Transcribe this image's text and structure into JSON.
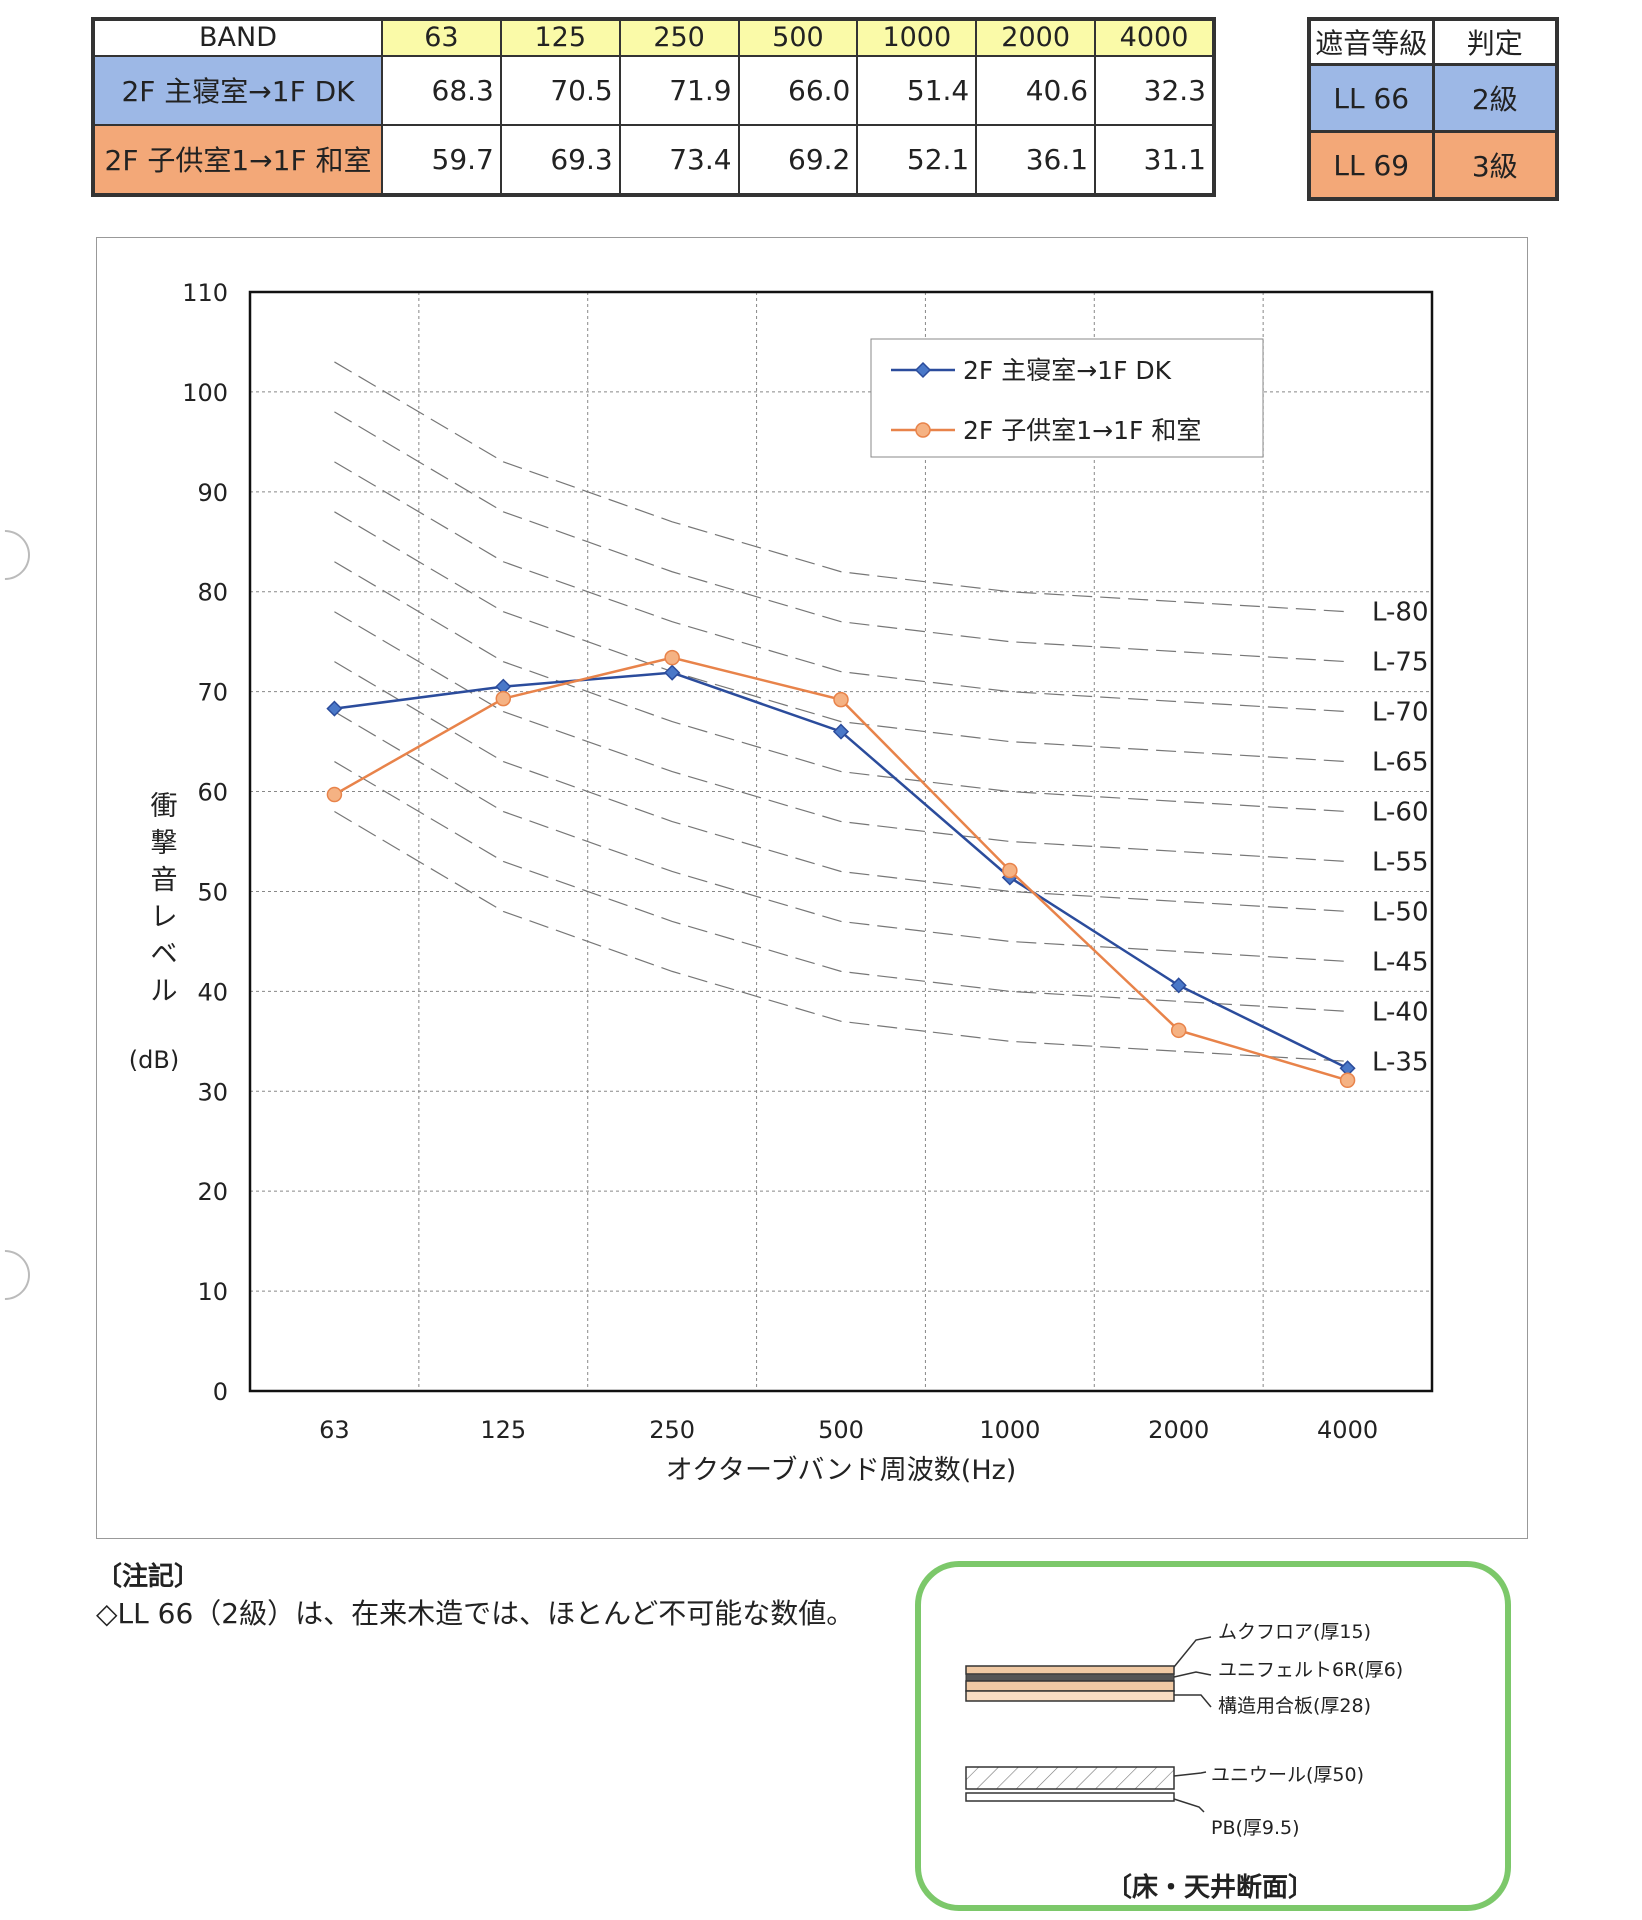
{
  "band_table": {
    "header_label": "BAND",
    "bands": [
      "63",
      "125",
      "250",
      "500",
      "1000",
      "2000",
      "4000"
    ],
    "rows": [
      {
        "label": "2F 主寝室→1F DK",
        "values": [
          "68.3",
          "70.5",
          "71.9",
          "66.0",
          "51.4",
          "40.6",
          "32.3"
        ]
      },
      {
        "label": "2F 子供室1→1F 和室",
        "values": [
          "59.7",
          "69.3",
          "73.4",
          "69.2",
          "52.1",
          "36.1",
          "31.1"
        ]
      }
    ]
  },
  "grade_table": {
    "header_grade": "遮音等級",
    "header_judge": "判定",
    "rows": [
      {
        "grade": "LL 66",
        "judge": "2級"
      },
      {
        "grade": "LL 69",
        "judge": "3級"
      }
    ]
  },
  "colors": {
    "series_blue": "#2b4c9c",
    "series_orange": "#e8834a",
    "row_blue": "#9db8e6",
    "row_orange": "#f3a878",
    "frame_green": "#7cc86a"
  },
  "chart_data": {
    "type": "line",
    "categories": [
      "63",
      "125",
      "250",
      "500",
      "1000",
      "2000",
      "4000"
    ],
    "series": [
      {
        "name": "2F 主寝室→1F DK",
        "values": [
          68.3,
          70.5,
          71.9,
          66.0,
          51.4,
          40.6,
          32.3
        ],
        "color": "#2b4c9c",
        "marker": "diamond"
      },
      {
        "name": "2F 子供室1→1F 和室",
        "values": [
          59.7,
          69.3,
          73.4,
          69.2,
          52.1,
          36.1,
          31.1
        ],
        "color": "#e8834a",
        "marker": "circle"
      }
    ],
    "reference_curves": [
      {
        "name": "L-80",
        "values": [
          103,
          93,
          87,
          82,
          80,
          79,
          78
        ]
      },
      {
        "name": "L-75",
        "values": [
          98,
          88,
          82,
          77,
          75,
          74,
          73
        ]
      },
      {
        "name": "L-70",
        "values": [
          93,
          83,
          77,
          72,
          70,
          69,
          68
        ]
      },
      {
        "name": "L-65",
        "values": [
          88,
          78,
          72,
          67,
          65,
          64,
          63
        ]
      },
      {
        "name": "L-60",
        "values": [
          83,
          73,
          67,
          62,
          60,
          59,
          58
        ]
      },
      {
        "name": "L-55",
        "values": [
          78,
          68,
          62,
          57,
          55,
          54,
          53
        ]
      },
      {
        "name": "L-50",
        "values": [
          73,
          63,
          57,
          52,
          50,
          49,
          48
        ]
      },
      {
        "name": "L-45",
        "values": [
          68,
          58,
          52,
          47,
          45,
          44,
          43
        ]
      },
      {
        "name": "L-40",
        "values": [
          63,
          53,
          47,
          42,
          40,
          39,
          38
        ]
      },
      {
        "name": "L-35",
        "values": [
          58,
          48,
          42,
          37,
          35,
          34,
          33
        ]
      }
    ],
    "xlabel": "オクターブバンド周波数(Hz)",
    "ylabel": "衝撃音レベル",
    "yunit": "(dB)",
    "ylim": [
      0,
      110
    ],
    "yticks": [
      0,
      10,
      20,
      30,
      40,
      50,
      60,
      70,
      80,
      90,
      100,
      110
    ],
    "grid": true,
    "legend_position": "top-right"
  },
  "notes": {
    "title": "〔注記〕",
    "body": "◇LL 66（2級）は、在来木造では、ほとんど不可能な数値。"
  },
  "section": {
    "title": "〔床・天井断面〕",
    "floor_labels": [
      "ムクフロア(厚15)",
      "ユニフェルト6R(厚6)",
      "構造用合板(厚28)"
    ],
    "ceiling_labels": [
      "ユニウール(厚50)",
      "PB(厚9.5)"
    ]
  }
}
